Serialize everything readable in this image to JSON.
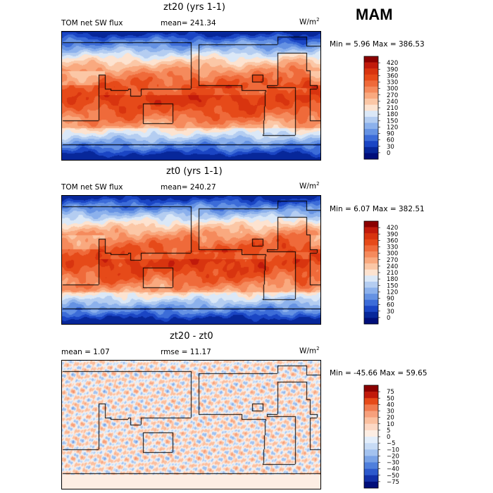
{
  "season": "MAM",
  "unit_base": "W/m",
  "unit_exp": "2",
  "panels": [
    {
      "title": "zt20 (yrs 1-1)",
      "left_label": "TOM net SW flux",
      "mid_label": "mean= 241.34",
      "minmax": "Min =   5.96 Max = 386.53",
      "colorbar_labels": [
        "420",
        "390",
        "360",
        "330",
        "300",
        "270",
        "240",
        "210",
        "180",
        "150",
        "120",
        "90",
        "60",
        "30",
        "0"
      ],
      "colorbar_colors": [
        "#8b0000",
        "#c11a0b",
        "#d8340f",
        "#e64a19",
        "#ef6a3a",
        "#f58a5c",
        "#f9a97f",
        "#fbc7a6",
        "#fde3d0",
        "#dbe8f7",
        "#b4cdf1",
        "#8cb1ec",
        "#6592e3",
        "#3c6cd8",
        "#1a45c4",
        "#07279a",
        "#000e7a"
      ],
      "field": "sw"
    },
    {
      "title": "zt0 (yrs 1-1)",
      "left_label": "TOM net SW flux",
      "mid_label": "mean= 240.27",
      "minmax": "Min =   6.07 Max = 382.51",
      "colorbar_labels": [
        "420",
        "390",
        "360",
        "330",
        "300",
        "270",
        "240",
        "210",
        "180",
        "150",
        "120",
        "90",
        "60",
        "30",
        "0"
      ],
      "colorbar_colors": [
        "#8b0000",
        "#c11a0b",
        "#d8340f",
        "#e64a19",
        "#ef6a3a",
        "#f58a5c",
        "#f9a97f",
        "#fbc7a6",
        "#fde3d0",
        "#dbe8f7",
        "#b4cdf1",
        "#8cb1ec",
        "#6592e3",
        "#3c6cd8",
        "#1a45c4",
        "#07279a",
        "#000e7a"
      ],
      "field": "sw"
    },
    {
      "title": "zt20 - zt0",
      "left_label": "mean =    1.07",
      "mid_label": "rmse =  11.17",
      "minmax": "Min = -45.66 Max =  59.65",
      "colorbar_labels": [
        "75",
        "50",
        "40",
        "30",
        "20",
        "10",
        "5",
        "0",
        "−5",
        "−10",
        "−20",
        "−30",
        "−40",
        "−50",
        "−75"
      ],
      "colorbar_colors": [
        "#8b0000",
        "#c11a0b",
        "#e64a19",
        "#f07a4f",
        "#f7a07c",
        "#fbc0a0",
        "#fdd8c4",
        "#fdeee4",
        "#e3eefb",
        "#c7dbf5",
        "#a3c2ef",
        "#7aa3e6",
        "#4f7fdc",
        "#2d59cc",
        "#1230a8",
        "#000e7a"
      ],
      "field": "diff"
    }
  ],
  "chart_data": [
    {
      "type": "heatmap",
      "title": "zt20 (yrs 1-1)",
      "variable": "TOM net SW flux",
      "mean": 241.34,
      "min": 5.96,
      "max": 386.53,
      "levels": [
        0,
        30,
        60,
        90,
        120,
        150,
        180,
        210,
        240,
        270,
        300,
        330,
        360,
        390,
        420
      ]
    },
    {
      "type": "heatmap",
      "title": "zt0 (yrs 1-1)",
      "variable": "TOM net SW flux",
      "mean": 240.27,
      "min": 6.07,
      "max": 382.51,
      "levels": [
        0,
        30,
        60,
        90,
        120,
        150,
        180,
        210,
        240,
        270,
        300,
        330,
        360,
        390,
        420
      ]
    },
    {
      "type": "heatmap",
      "title": "zt20 - zt0",
      "mean": 1.07,
      "rmse": 11.17,
      "min": -45.66,
      "max": 59.65,
      "levels": [
        -75,
        -50,
        -40,
        -30,
        -20,
        -10,
        -5,
        0,
        5,
        10,
        20,
        30,
        40,
        50,
        75
      ]
    }
  ]
}
